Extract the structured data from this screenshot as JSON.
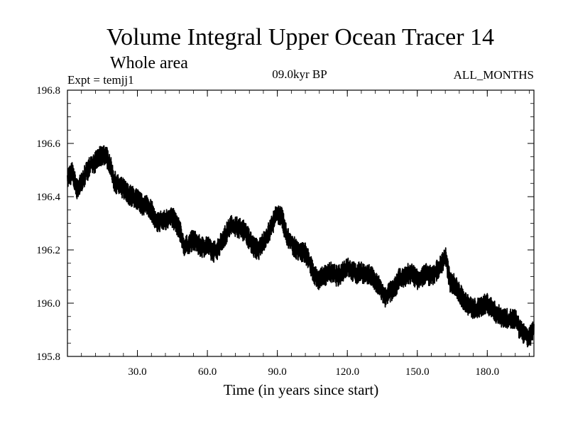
{
  "chart_data": {
    "type": "line",
    "title": "Volume Integral Upper Ocean Tracer 14",
    "subtitle": "Whole area",
    "expt_label": "Expt = temjj1",
    "period_label": "09.0kyr BP",
    "months_label": "ALL_MONTHS",
    "xlabel": "Time (in years since start)",
    "ylabel": "",
    "xlim": [
      0,
      200
    ],
    "ylim": [
      195.8,
      196.8
    ],
    "x_ticks": [
      30,
      60,
      90,
      120,
      150,
      180
    ],
    "x_tick_labels": [
      "30.0",
      "60.0",
      "90.0",
      "120.0",
      "150.0",
      "180.0"
    ],
    "y_ticks": [
      195.8,
      196.0,
      196.2,
      196.4,
      196.6,
      196.8
    ],
    "y_tick_labels": [
      "195.8",
      "196.0",
      "196.2",
      "196.4",
      "196.6",
      "196.8"
    ],
    "series": [
      {
        "name": "Tracer 14",
        "color": "#000000",
        "x": [
          0,
          2,
          4,
          6,
          8,
          10,
          12,
          14,
          16,
          18,
          20,
          22,
          24,
          26,
          28,
          30,
          32,
          34,
          36,
          38,
          40,
          42,
          44,
          46,
          48,
          50,
          52,
          54,
          56,
          58,
          60,
          62,
          64,
          66,
          68,
          70,
          72,
          74,
          76,
          78,
          80,
          82,
          84,
          86,
          88,
          90,
          92,
          94,
          96,
          98,
          100,
          102,
          104,
          106,
          108,
          110,
          112,
          114,
          116,
          118,
          120,
          122,
          124,
          126,
          128,
          130,
          132,
          134,
          136,
          138,
          140,
          142,
          144,
          146,
          148,
          150,
          152,
          154,
          156,
          158,
          160,
          162,
          164,
          166,
          168,
          170,
          172,
          174,
          176,
          178,
          180,
          182,
          184,
          186,
          188,
          190,
          192,
          194,
          196,
          198,
          200
        ],
        "y": [
          196.47,
          196.49,
          196.43,
          196.45,
          196.49,
          196.52,
          196.53,
          196.55,
          196.56,
          196.53,
          196.46,
          196.44,
          196.43,
          196.41,
          196.4,
          196.39,
          196.37,
          196.37,
          196.35,
          196.3,
          196.31,
          196.31,
          196.33,
          196.31,
          196.28,
          196.21,
          196.22,
          196.24,
          196.22,
          196.21,
          196.22,
          196.19,
          196.2,
          196.23,
          196.26,
          196.29,
          196.29,
          196.28,
          196.27,
          196.24,
          196.21,
          196.2,
          196.23,
          196.26,
          196.3,
          196.34,
          196.32,
          196.25,
          196.23,
          196.2,
          196.19,
          196.19,
          196.15,
          196.1,
          196.09,
          196.1,
          196.12,
          196.11,
          196.1,
          196.12,
          196.14,
          196.12,
          196.11,
          196.12,
          196.1,
          196.11,
          196.08,
          196.06,
          196.02,
          196.04,
          196.05,
          196.09,
          196.09,
          196.11,
          196.11,
          196.09,
          196.1,
          196.11,
          196.1,
          196.12,
          196.14,
          196.18,
          196.08,
          196.07,
          196.04,
          196.01,
          195.99,
          195.98,
          195.98,
          195.99,
          196.0,
          195.98,
          195.96,
          195.95,
          195.94,
          195.94,
          195.94,
          195.9,
          195.88,
          195.87,
          195.9
        ]
      }
    ]
  }
}
